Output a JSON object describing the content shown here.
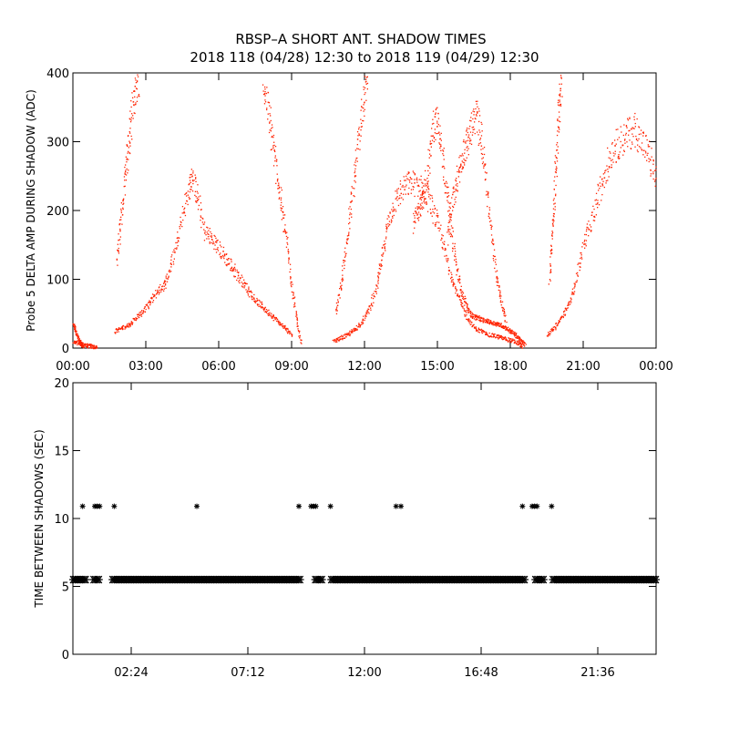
{
  "title_line1": "RBSP–A SHORT ANT. SHADOW TIMES",
  "title_line2": "2018 118 (04/28) 12:30 to 2018 119 (04/29) 12:30",
  "colors": {
    "top_series": "#ff2200",
    "bottom_series": "#000000",
    "axes": "#000000"
  },
  "chart_data": [
    {
      "type": "scatter",
      "ylabel": "Probe 5 DELTA AMP DURING SHADOW (ADC)",
      "xlim": [
        0,
        24
      ],
      "ylim": [
        0,
        400
      ],
      "yticks": [
        0,
        100,
        200,
        300,
        400
      ],
      "xtick_values": [
        0,
        3,
        6,
        9,
        12,
        15,
        18,
        21,
        24
      ],
      "xtick_labels": [
        "00:00",
        "03:00",
        "06:00",
        "09:00",
        "12:00",
        "15:00",
        "18:00",
        "21:00",
        "00:00"
      ],
      "series": [
        {
          "color": "#ff2200",
          "segments": [
            {
              "x": [
                0.0,
                0.1,
                0.2,
                0.3,
                0.4
              ],
              "y": [
                35,
                25,
                15,
                8,
                3
              ]
            },
            {
              "x": [
                0.0,
                0.2,
                0.4,
                0.6,
                0.8,
                1.0
              ],
              "y": [
                10,
                8,
                6,
                4,
                3,
                2
              ]
            },
            {
              "x": [
                1.7,
                2.0,
                2.3,
                2.6,
                2.9,
                3.2,
                3.5,
                3.8,
                4.1,
                4.4,
                4.7,
                4.9,
                5.1,
                5.4,
                5.7,
                6.0,
                6.3,
                6.6,
                6.9,
                7.2,
                7.5,
                7.8,
                8.1,
                8.4,
                8.7,
                9.0
              ],
              "y": [
                25,
                30,
                35,
                45,
                55,
                70,
                85,
                95,
                130,
                180,
                225,
                250,
                220,
                170,
                160,
                145,
                130,
                115,
                100,
                85,
                70,
                60,
                50,
                40,
                30,
                20
              ]
            },
            {
              "x": [
                1.8,
                1.95,
                2.1,
                2.25,
                2.4,
                2.55,
                2.7
              ],
              "y": [
                130,
                185,
                240,
                290,
                340,
                375,
                400
              ]
            },
            {
              "x": [
                7.8,
                8.0,
                8.2,
                8.4,
                8.6,
                8.8,
                9.0,
                9.2,
                9.4
              ],
              "y": [
                400,
                350,
                300,
                250,
                200,
                150,
                90,
                40,
                5
              ]
            },
            {
              "x": [
                10.7,
                11.0,
                11.3,
                11.6,
                11.9,
                12.2,
                12.5,
                12.7,
                12.9,
                13.2,
                13.5,
                13.8,
                14.1,
                14.4,
                14.7,
                15.0,
                15.3,
                15.6,
                15.9,
                16.2,
                16.5,
                16.8,
                17.1,
                17.4,
                17.7,
                18.0,
                18.3,
                18.5
              ],
              "y": [
                10,
                15,
                20,
                28,
                40,
                60,
                90,
                130,
                180,
                210,
                230,
                240,
                240,
                230,
                210,
                180,
                140,
                100,
                70,
                45,
                30,
                25,
                20,
                18,
                15,
                12,
                8,
                3
              ]
            },
            {
              "x": [
                10.8,
                11.0,
                11.2,
                11.4,
                11.6,
                11.8,
                12.0,
                12.1
              ],
              "y": [
                50,
                90,
                140,
                200,
                260,
                320,
                380,
                410
              ]
            },
            {
              "x": [
                14.0,
                14.2,
                14.4,
                14.6,
                14.8,
                15.0,
                15.2,
                15.4,
                15.6,
                15.8,
                16.0,
                16.2,
                16.4,
                16.6,
                16.8,
                17.0,
                17.2,
                17.4,
                17.6,
                17.8,
                18.0,
                18.2,
                18.4,
                18.6
              ],
              "y": [
                180,
                200,
                220,
                260,
                320,
                340,
                280,
                220,
                160,
                110,
                80,
                60,
                48,
                45,
                42,
                40,
                38,
                36,
                34,
                30,
                25,
                20,
                12,
                5
              ]
            },
            {
              "x": [
                15.4,
                15.6,
                15.8,
                16.0,
                16.2,
                16.4,
                16.6,
                16.8,
                17.0,
                17.2,
                17.4,
                17.6,
                17.8
              ],
              "y": [
                160,
                210,
                250,
                280,
                300,
                320,
                340,
                300,
                240,
                170,
                110,
                70,
                40
              ]
            },
            {
              "x": [
                19.5,
                19.8,
                20.1,
                20.4,
                20.7,
                21.0,
                21.3,
                21.6,
                21.9,
                22.2,
                22.5,
                22.8,
                23.1,
                23.4,
                23.7,
                24.0
              ],
              "y": [
                20,
                30,
                45,
                65,
                100,
                150,
                180,
                220,
                260,
                290,
                300,
                310,
                320,
                300,
                280,
                240
              ]
            },
            {
              "x": [
                19.6,
                19.7,
                19.8,
                19.9,
                20.0,
                20.1
              ],
              "y": [
                100,
                160,
                220,
                290,
                360,
                400
              ]
            }
          ]
        }
      ]
    },
    {
      "type": "scatter",
      "ylabel": "TIME BETWEEN SHADOWS (SEC)",
      "xlim": [
        0,
        24
      ],
      "ylim": [
        0,
        20
      ],
      "yticks": [
        0,
        5,
        10,
        15,
        20
      ],
      "xtick_values": [
        2.4,
        7.2,
        12,
        16.8,
        21.6
      ],
      "xtick_labels": [
        "02:24",
        "07:12",
        "12:00",
        "16:48",
        "21:36"
      ],
      "series": [
        {
          "color": "#000000",
          "baseline_y": 5.5,
          "baseline_range": [
            0,
            24
          ],
          "baseline_gaps": [
            [
              0.6,
              0.8
            ],
            [
              1.1,
              1.6
            ],
            [
              9.4,
              9.9
            ],
            [
              10.3,
              10.6
            ],
            [
              18.6,
              19.0
            ],
            [
              19.4,
              19.7
            ]
          ],
          "outliers": {
            "x": [
              0.4,
              0.9,
              1.0,
              1.1,
              1.7,
              5.1,
              9.3,
              9.8,
              9.9,
              10.0,
              10.6,
              13.3,
              13.5,
              18.5,
              18.9,
              19.0,
              19.1,
              19.7
            ],
            "y": [
              10.9,
              10.9,
              10.9,
              10.9,
              10.9,
              10.9,
              10.9,
              10.9,
              10.9,
              10.9,
              10.9,
              10.9,
              10.9,
              10.9,
              10.9,
              10.9,
              10.9,
              10.9
            ]
          }
        }
      ]
    }
  ]
}
